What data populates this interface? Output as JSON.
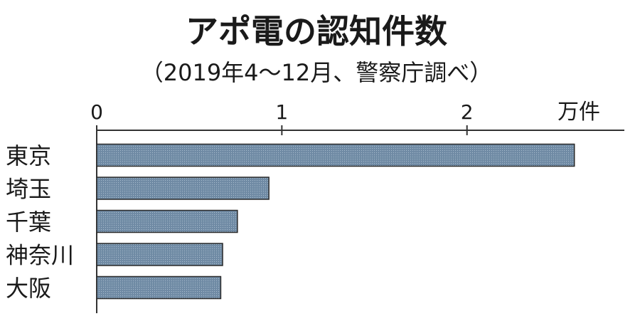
{
  "chart_data": {
    "type": "bar",
    "orientation": "horizontal",
    "title": "アポ電の認知件数",
    "subtitle": "（2019年4～12月、警察庁調べ）",
    "unit_label": "万件",
    "categories": [
      "東京",
      "埼玉",
      "千葉",
      "神奈川",
      "大阪"
    ],
    "values": [
      2.58,
      0.93,
      0.76,
      0.68,
      0.67
    ],
    "xlim": [
      0,
      2.85
    ],
    "xticks": [
      0,
      1,
      2
    ],
    "xtick_labels": [
      "0",
      "1",
      "2"
    ],
    "grid": false,
    "legend": "none",
    "bar_color": "#6f8aa4",
    "bar_edge_color": "#2a2a2a"
  }
}
